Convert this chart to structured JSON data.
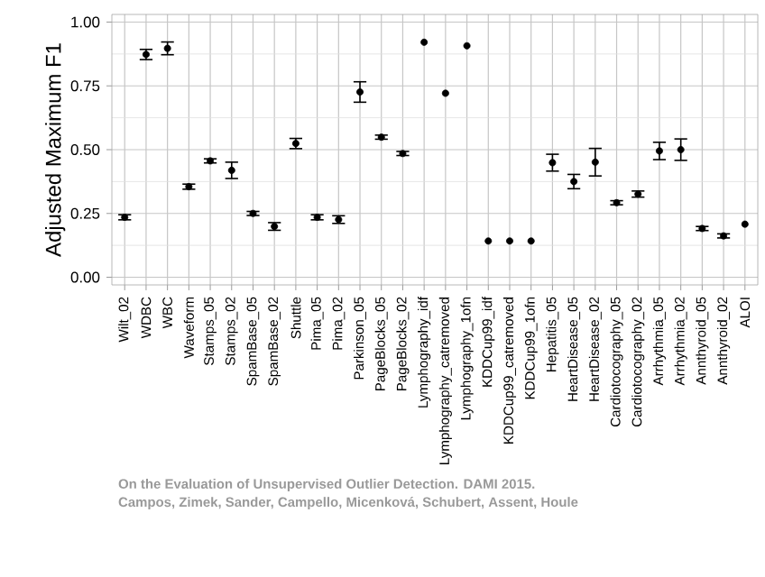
{
  "chart_data": {
    "type": "scatter",
    "ylabel": "Adjusted Maximum F1",
    "categories": [
      "Wilt_02",
      "WDBC",
      "WBC",
      "Waveform",
      "Stamps_05",
      "Stamps_02",
      "SpamBase_05",
      "SpamBase_02",
      "Shuttle",
      "Pima_05",
      "Pima_02",
      "Parkinson_05",
      "PageBlocks_05",
      "PageBlocks_02",
      "Lymphography_idf",
      "Lymphography_catremoved",
      "Lymphography_1ofn",
      "KDDCup99_idf",
      "KDDCup99_catremoved",
      "KDDCup99_1ofn",
      "Hepatitis_05",
      "HeartDisease_05",
      "HeartDisease_02",
      "Cardiotocography_05",
      "Cardiotocography_02",
      "Arrhythmia_05",
      "Arrhythmia_02",
      "Annthyroid_05",
      "Annthyroid_02",
      "ALOI"
    ],
    "values": [
      0.235,
      0.873,
      0.897,
      0.355,
      0.456,
      0.419,
      0.25,
      0.199,
      0.524,
      0.235,
      0.226,
      0.726,
      0.549,
      0.485,
      0.921,
      0.721,
      0.907,
      0.142,
      0.142,
      0.142,
      0.449,
      0.375,
      0.451,
      0.292,
      0.326,
      0.495,
      0.5,
      0.191,
      0.162,
      0.208
    ],
    "errors": [
      0.01,
      0.02,
      0.025,
      0.01,
      0.008,
      0.032,
      0.008,
      0.015,
      0.02,
      0.01,
      0.015,
      0.04,
      0.008,
      0.008,
      null,
      null,
      null,
      null,
      null,
      null,
      0.033,
      0.028,
      0.054,
      0.008,
      0.012,
      0.034,
      0.042,
      0.008,
      0.008,
      null
    ],
    "color": "#000000",
    "marker": "circle",
    "grid": true,
    "ylim": [
      -0.03,
      1.03
    ],
    "yticks": [
      {
        "value": 0,
        "label": "0.00"
      },
      {
        "value": 0.25,
        "label": "0.25"
      },
      {
        "value": 0.5,
        "label": "0.50"
      },
      {
        "value": 0.75,
        "label": "0.75"
      },
      {
        "value": 1,
        "label": "1.00"
      }
    ],
    "annotations": [
      "On the Evaluation of Unsupervised Outlier Detection. DAMI 2015.",
      "Campos, Zimek, Sander, Campello, Micenková, Schubert, Assent, Houle"
    ]
  }
}
